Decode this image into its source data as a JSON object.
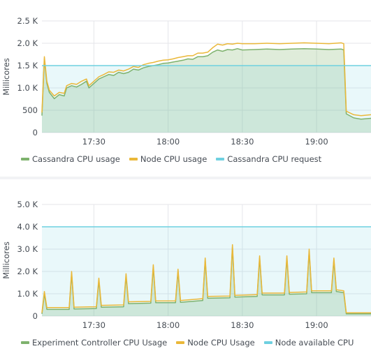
{
  "colors": {
    "green": "#7eb26d",
    "yellow": "#eab839",
    "cyan": "#6ed0e0",
    "grid": "#e4e6ea",
    "text": "#464c54"
  },
  "chart_data": [
    {
      "type": "line",
      "title": "",
      "xlabel": "",
      "ylabel": "Millicores",
      "x_range": [
        "17:09",
        "19:22"
      ],
      "x_ticks": [
        "17:30",
        "18:00",
        "18:30",
        "19:00"
      ],
      "ylim": [
        0,
        2500
      ],
      "y_ticks": [
        {
          "value": 0,
          "label": "0"
        },
        {
          "value": 500,
          "label": "500"
        },
        {
          "value": 1000,
          "label": "1.0 K"
        },
        {
          "value": 1500,
          "label": "1.5 K"
        },
        {
          "value": 2000,
          "label": "2.0 K"
        },
        {
          "value": 2500,
          "label": "2.5 K"
        }
      ],
      "grid": true,
      "legend_position": "bottom-left",
      "series": [
        {
          "name": "Cassandra CPU usage",
          "color": "#7eb26d",
          "kind": "area-line",
          "points": [
            [
              "17:09",
              380
            ],
            [
              "17:10",
              1650
            ],
            [
              "17:11",
              1100
            ],
            [
              "17:12",
              900
            ],
            [
              "17:14",
              760
            ],
            [
              "17:16",
              850
            ],
            [
              "17:18",
              820
            ],
            [
              "17:19",
              1000
            ],
            [
              "17:21",
              1050
            ],
            [
              "17:23",
              1020
            ],
            [
              "17:25",
              1080
            ],
            [
              "17:27",
              1150
            ],
            [
              "17:28",
              1000
            ],
            [
              "17:30",
              1100
            ],
            [
              "17:32",
              1200
            ],
            [
              "17:34",
              1250
            ],
            [
              "17:36",
              1300
            ],
            [
              "17:38",
              1280
            ],
            [
              "17:40",
              1350
            ],
            [
              "17:42",
              1320
            ],
            [
              "17:44",
              1350
            ],
            [
              "17:46",
              1420
            ],
            [
              "17:48",
              1400
            ],
            [
              "17:50",
              1450
            ],
            [
              "17:52",
              1480
            ],
            [
              "17:54",
              1500
            ],
            [
              "17:56",
              1520
            ],
            [
              "17:58",
              1550
            ],
            [
              "18:00",
              1560
            ],
            [
              "18:02",
              1580
            ],
            [
              "18:04",
              1600
            ],
            [
              "18:06",
              1620
            ],
            [
              "18:08",
              1650
            ],
            [
              "18:10",
              1640
            ],
            [
              "18:12",
              1700
            ],
            [
              "18:14",
              1700
            ],
            [
              "18:16",
              1720
            ],
            [
              "18:18",
              1800
            ],
            [
              "18:20",
              1850
            ],
            [
              "18:22",
              1820
            ],
            [
              "18:24",
              1860
            ],
            [
              "18:26",
              1850
            ],
            [
              "18:28",
              1880
            ],
            [
              "18:30",
              1850
            ],
            [
              "18:35",
              1860
            ],
            [
              "18:40",
              1870
            ],
            [
              "18:45",
              1860
            ],
            [
              "18:50",
              1870
            ],
            [
              "18:55",
              1880
            ],
            [
              "19:00",
              1870
            ],
            [
              "19:05",
              1860
            ],
            [
              "19:10",
              1870
            ],
            [
              "19:11",
              1850
            ],
            [
              "19:12",
              420
            ],
            [
              "19:15",
              330
            ],
            [
              "19:18",
              300
            ],
            [
              "19:22",
              320
            ]
          ]
        },
        {
          "name": "Node CPU usage",
          "color": "#eab839",
          "kind": "line",
          "points": [
            [
              "17:09",
              450
            ],
            [
              "17:10",
              1700
            ],
            [
              "17:11",
              1150
            ],
            [
              "17:12",
              950
            ],
            [
              "17:14",
              820
            ],
            [
              "17:16",
              900
            ],
            [
              "17:18",
              880
            ],
            [
              "17:19",
              1050
            ],
            [
              "17:21",
              1100
            ],
            [
              "17:23",
              1080
            ],
            [
              "17:25",
              1150
            ],
            [
              "17:27",
              1200
            ],
            [
              "17:28",
              1050
            ],
            [
              "17:30",
              1150
            ],
            [
              "17:32",
              1250
            ],
            [
              "17:34",
              1300
            ],
            [
              "17:36",
              1360
            ],
            [
              "17:38",
              1350
            ],
            [
              "17:40",
              1400
            ],
            [
              "17:42",
              1380
            ],
            [
              "17:44",
              1420
            ],
            [
              "17:46",
              1480
            ],
            [
              "17:48",
              1460
            ],
            [
              "17:50",
              1520
            ],
            [
              "17:52",
              1550
            ],
            [
              "17:54",
              1570
            ],
            [
              "17:56",
              1600
            ],
            [
              "17:58",
              1620
            ],
            [
              "18:00",
              1630
            ],
            [
              "18:02",
              1650
            ],
            [
              "18:04",
              1680
            ],
            [
              "18:06",
              1700
            ],
            [
              "18:08",
              1720
            ],
            [
              "18:10",
              1720
            ],
            [
              "18:12",
              1780
            ],
            [
              "18:14",
              1780
            ],
            [
              "18:16",
              1800
            ],
            [
              "18:18",
              1900
            ],
            [
              "18:20",
              1980
            ],
            [
              "18:22",
              1960
            ],
            [
              "18:24",
              1990
            ],
            [
              "18:26",
              1980
            ],
            [
              "18:28",
              2000
            ],
            [
              "18:30",
              1990
            ],
            [
              "18:35",
              1990
            ],
            [
              "18:40",
              2000
            ],
            [
              "18:45",
              1990
            ],
            [
              "18:50",
              2000
            ],
            [
              "18:55",
              2010
            ],
            [
              "19:00",
              2000
            ],
            [
              "19:05",
              1990
            ],
            [
              "19:10",
              2010
            ],
            [
              "19:11",
              1990
            ],
            [
              "19:12",
              480
            ],
            [
              "19:15",
              400
            ],
            [
              "19:18",
              380
            ],
            [
              "19:22",
              400
            ]
          ]
        },
        {
          "name": "Cassandra CPU request",
          "color": "#6ed0e0",
          "kind": "line",
          "points": [
            [
              "17:09",
              1500
            ],
            [
              "19:22",
              1500
            ]
          ]
        }
      ]
    },
    {
      "type": "line",
      "title": "",
      "xlabel": "",
      "ylabel": "Millicores",
      "x_range": [
        "17:09",
        "19:22"
      ],
      "x_ticks": [
        "17:30",
        "18:00",
        "18:30",
        "19:00"
      ],
      "ylim": [
        0,
        5000
      ],
      "y_ticks": [
        {
          "value": 0,
          "label": "0"
        },
        {
          "value": 1000,
          "label": "1.0 K"
        },
        {
          "value": 2000,
          "label": "2.0 K"
        },
        {
          "value": 3000,
          "label": "3.0 K"
        },
        {
          "value": 4000,
          "label": "4.0 K"
        },
        {
          "value": 5000,
          "label": "5.0 K"
        }
      ],
      "grid": true,
      "legend_position": "bottom-left",
      "series": [
        {
          "name": "Experiment Controller CPU Usage",
          "color": "#7eb26d",
          "kind": "area-line",
          "points": [
            [
              "17:09",
              100
            ],
            [
              "17:10",
              1000
            ],
            [
              "17:11",
              300
            ],
            [
              "17:20",
              300
            ],
            [
              "17:21",
              1900
            ],
            [
              "17:22",
              320
            ],
            [
              "17:31",
              340
            ],
            [
              "17:32",
              1600
            ],
            [
              "17:33",
              400
            ],
            [
              "17:42",
              420
            ],
            [
              "17:43",
              1800
            ],
            [
              "17:44",
              560
            ],
            [
              "17:53",
              580
            ],
            [
              "17:54",
              2200
            ],
            [
              "17:55",
              600
            ],
            [
              "18:03",
              600
            ],
            [
              "18:04",
              2000
            ],
            [
              "18:05",
              620
            ],
            [
              "18:14",
              700
            ],
            [
              "18:15",
              2500
            ],
            [
              "18:16",
              800
            ],
            [
              "18:25",
              820
            ],
            [
              "18:26",
              3100
            ],
            [
              "18:27",
              850
            ],
            [
              "18:36",
              880
            ],
            [
              "18:37",
              2600
            ],
            [
              "18:38",
              950
            ],
            [
              "18:47",
              950
            ],
            [
              "18:48",
              2600
            ],
            [
              "18:49",
              980
            ],
            [
              "18:56",
              1000
            ],
            [
              "18:57",
              2900
            ],
            [
              "18:58",
              1050
            ],
            [
              "19:06",
              1050
            ],
            [
              "19:07",
              2500
            ],
            [
              "19:08",
              1100
            ],
            [
              "19:11",
              1050
            ],
            [
              "19:12",
              100
            ],
            [
              "19:22",
              100
            ]
          ]
        },
        {
          "name": "Node CPU Usage",
          "color": "#eab839",
          "kind": "line",
          "points": [
            [
              "17:09",
              150
            ],
            [
              "17:10",
              1100
            ],
            [
              "17:11",
              380
            ],
            [
              "17:20",
              380
            ],
            [
              "17:21",
              2000
            ],
            [
              "17:22",
              400
            ],
            [
              "17:31",
              420
            ],
            [
              "17:32",
              1700
            ],
            [
              "17:33",
              480
            ],
            [
              "17:42",
              500
            ],
            [
              "17:43",
              1900
            ],
            [
              "17:44",
              640
            ],
            [
              "17:53",
              660
            ],
            [
              "17:54",
              2300
            ],
            [
              "17:55",
              680
            ],
            [
              "18:03",
              680
            ],
            [
              "18:04",
              2100
            ],
            [
              "18:05",
              700
            ],
            [
              "18:14",
              780
            ],
            [
              "18:15",
              2600
            ],
            [
              "18:16",
              880
            ],
            [
              "18:25",
              900
            ],
            [
              "18:26",
              3200
            ],
            [
              "18:27",
              930
            ],
            [
              "18:36",
              960
            ],
            [
              "18:37",
              2700
            ],
            [
              "18:38",
              1030
            ],
            [
              "18:47",
              1030
            ],
            [
              "18:48",
              2700
            ],
            [
              "18:49",
              1060
            ],
            [
              "18:56",
              1080
            ],
            [
              "18:57",
              3000
            ],
            [
              "18:58",
              1130
            ],
            [
              "19:06",
              1130
            ],
            [
              "19:07",
              2600
            ],
            [
              "19:08",
              1180
            ],
            [
              "19:11",
              1130
            ],
            [
              "19:12",
              150
            ],
            [
              "19:22",
              150
            ]
          ]
        },
        {
          "name": "Node available CPU",
          "color": "#6ed0e0",
          "kind": "line",
          "points": [
            [
              "17:09",
              4000
            ],
            [
              "19:22",
              4000
            ]
          ]
        }
      ]
    }
  ]
}
